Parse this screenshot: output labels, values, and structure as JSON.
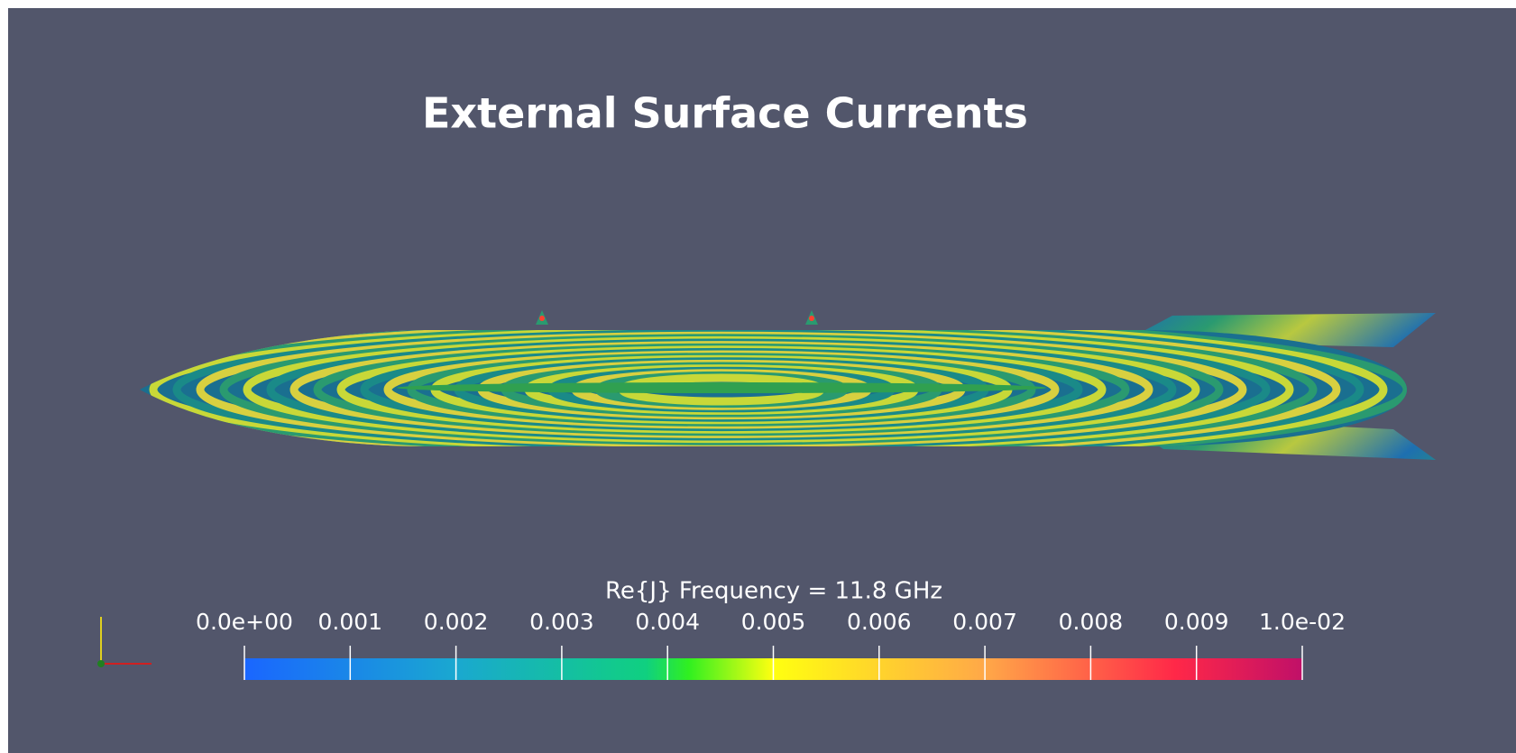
{
  "title": "External Surface Currents",
  "colorbar": {
    "title": "Re{J}   Frequency = 11.8 GHz",
    "range": [
      0,
      0.01
    ],
    "ticks": [
      {
        "value": 0,
        "label": "0.0e+00"
      },
      0.001,
      0.002,
      0.003,
      0.004,
      0.005,
      0.006,
      0.007,
      0.008,
      0.009,
      {
        "value": 0.01,
        "label": "1.0e-02"
      }
    ]
  }
}
